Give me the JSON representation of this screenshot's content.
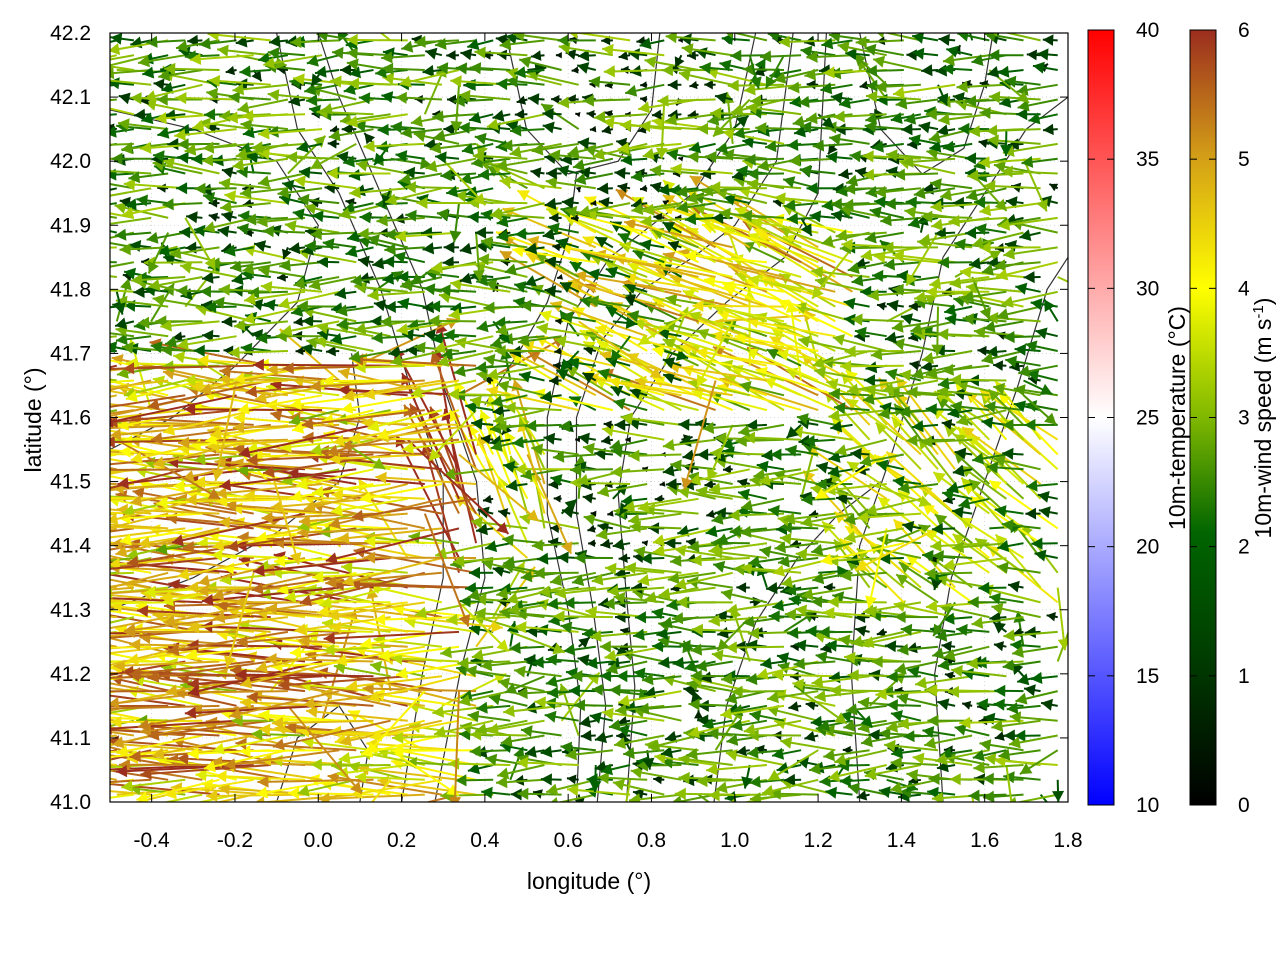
{
  "chart_data": {
    "type": "vector-field",
    "xlabel": "longitude (°)",
    "ylabel": "latitude (°)",
    "xlim": [
      -0.5,
      1.8
    ],
    "ylim": [
      41.0,
      42.2
    ],
    "x_ticks": [
      "-0.4",
      "-0.2",
      "0.0",
      "0.2",
      "0.4",
      "0.6",
      "0.8",
      "1.0",
      "1.2",
      "1.4",
      "1.6",
      "1.8"
    ],
    "y_ticks": [
      "41.0",
      "41.1",
      "41.2",
      "41.3",
      "41.4",
      "41.5",
      "41.6",
      "41.7",
      "41.8",
      "41.9",
      "42.0",
      "42.1",
      "42.2"
    ],
    "grid": true,
    "colorbars": [
      {
        "label_prefix": "10m-temperature (°C)",
        "label_sup": "",
        "label_suffix": "",
        "range": [
          10,
          40
        ],
        "ticks": [
          "10",
          "15",
          "20",
          "25",
          "30",
          "35",
          "40"
        ],
        "colors": [
          "#0000ff",
          "#ffffff",
          "#ff0000"
        ]
      },
      {
        "label_prefix": "10m-wind speed (m s",
        "label_sup": "-1",
        "label_suffix": ")",
        "range": [
          0,
          6
        ],
        "ticks": [
          "0",
          "1",
          "2",
          "3",
          "4",
          "5",
          "6"
        ],
        "colors": [
          "#000000",
          "#006400",
          "#7fb800",
          "#ffff00",
          "#d4a017",
          "#9b2d1e"
        ]
      }
    ],
    "series": [
      {
        "type": "contours",
        "color": "#333333",
        "lines": [
          [
            [
              0.62,
              41.0
            ],
            [
              0.63,
              41.15
            ],
            [
              0.6,
              41.3
            ],
            [
              0.55,
              41.45
            ],
            [
              0.55,
              41.6
            ],
            [
              0.6,
              41.75
            ],
            [
              0.7,
              41.85
            ],
            [
              0.8,
              41.9
            ],
            [
              0.9,
              41.95
            ],
            [
              1.0,
              42.05
            ],
            [
              1.05,
              42.2
            ]
          ],
          [
            [
              0.67,
              41.0
            ],
            [
              0.69,
              41.15
            ],
            [
              0.66,
              41.3
            ],
            [
              0.62,
              41.45
            ],
            [
              0.62,
              41.6
            ],
            [
              0.68,
              41.72
            ],
            [
              0.78,
              41.8
            ],
            [
              0.9,
              41.85
            ],
            [
              1.0,
              41.9
            ],
            [
              1.1,
              42.0
            ],
            [
              1.14,
              42.2
            ]
          ],
          [
            [
              0.74,
              41.0
            ],
            [
              0.76,
              41.18
            ],
            [
              0.74,
              41.32
            ],
            [
              0.72,
              41.48
            ],
            [
              0.75,
              41.6
            ],
            [
              0.85,
              41.7
            ],
            [
              0.98,
              41.78
            ],
            [
              1.12,
              41.85
            ],
            [
              1.2,
              41.95
            ],
            [
              1.22,
              42.2
            ]
          ],
          [
            [
              0.2,
              41.0
            ],
            [
              0.25,
              41.2
            ],
            [
              0.3,
              41.35
            ],
            [
              0.3,
              41.5
            ],
            [
              0.22,
              41.65
            ],
            [
              0.15,
              41.8
            ],
            [
              0.05,
              41.95
            ],
            [
              -0.05,
              42.05
            ],
            [
              -0.1,
              42.2
            ]
          ],
          [
            [
              0.28,
              41.0
            ],
            [
              0.34,
              41.2
            ],
            [
              0.4,
              41.35
            ],
            [
              0.38,
              41.5
            ],
            [
              0.3,
              41.65
            ],
            [
              0.25,
              41.8
            ],
            [
              0.15,
              41.95
            ],
            [
              0.05,
              42.1
            ],
            [
              0.0,
              42.2
            ]
          ],
          [
            [
              -0.5,
              41.55
            ],
            [
              -0.35,
              41.6
            ],
            [
              -0.2,
              41.68
            ],
            [
              -0.05,
              41.78
            ],
            [
              0.0,
              41.9
            ],
            [
              -0.1,
              42.0
            ],
            [
              -0.3,
              42.05
            ],
            [
              -0.5,
              42.08
            ]
          ],
          [
            [
              -0.5,
              41.3
            ],
            [
              -0.3,
              41.35
            ],
            [
              -0.1,
              41.42
            ],
            [
              0.05,
              41.5
            ],
            [
              0.1,
              41.6
            ],
            [
              0.08,
              41.7
            ]
          ],
          [
            [
              1.3,
              41.0
            ],
            [
              1.28,
              41.2
            ],
            [
              1.3,
              41.4
            ],
            [
              1.38,
              41.55
            ],
            [
              1.45,
              41.7
            ],
            [
              1.5,
              41.85
            ],
            [
              1.6,
              41.95
            ],
            [
              1.7,
              42.05
            ],
            [
              1.8,
              42.1
            ]
          ],
          [
            [
              1.5,
              41.0
            ],
            [
              1.48,
              41.2
            ],
            [
              1.52,
              41.35
            ],
            [
              1.6,
              41.5
            ],
            [
              1.68,
              41.65
            ],
            [
              1.75,
              41.8
            ],
            [
              1.8,
              41.85
            ]
          ],
          [
            [
              0.95,
              41.0
            ],
            [
              0.98,
              41.15
            ],
            [
              1.05,
              41.28
            ],
            [
              1.15,
              41.38
            ],
            [
              1.25,
              41.45
            ],
            [
              1.35,
              41.5
            ]
          ],
          [
            [
              0.45,
              42.2
            ],
            [
              0.5,
              42.05
            ],
            [
              0.6,
              41.98
            ],
            [
              0.72,
              42.0
            ],
            [
              0.8,
              42.08
            ],
            [
              0.82,
              42.2
            ]
          ],
          [
            [
              1.3,
              42.2
            ],
            [
              1.35,
              42.05
            ],
            [
              1.45,
              41.98
            ],
            [
              1.55,
              42.02
            ],
            [
              1.6,
              42.12
            ],
            [
              1.62,
              42.2
            ]
          ],
          [
            [
              -0.1,
              41.0
            ],
            [
              -0.05,
              41.1
            ],
            [
              0.05,
              41.15
            ],
            [
              0.12,
              41.08
            ],
            [
              0.1,
              41.0
            ]
          ],
          [
            [
              0.4,
              41.62
            ],
            [
              0.48,
              41.7
            ],
            [
              0.55,
              41.78
            ],
            [
              0.6,
              41.88
            ],
            [
              0.62,
              41.98
            ]
          ]
        ]
      }
    ]
  }
}
